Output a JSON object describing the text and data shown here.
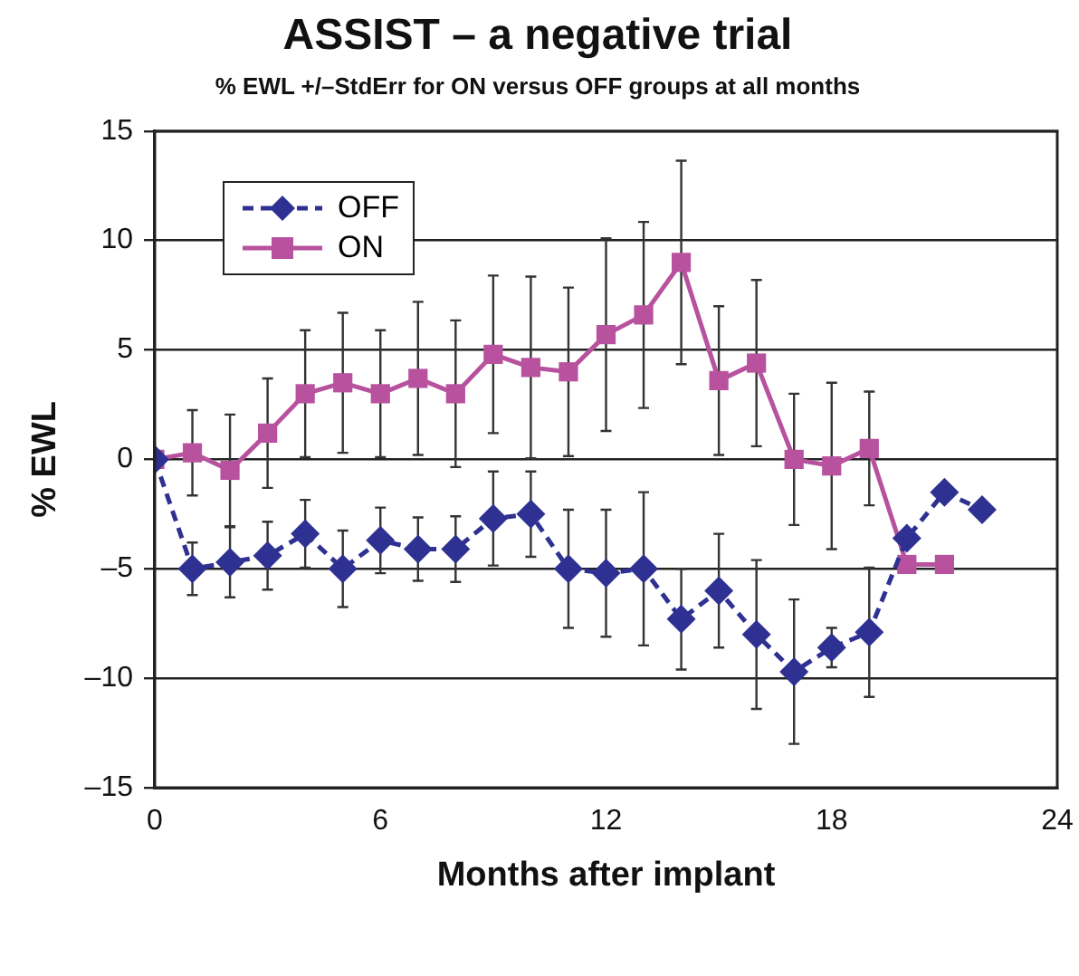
{
  "chart_data": {
    "type": "line",
    "title": "ASSIST – a negative trial",
    "subtitle": "% EWL +/–StdErr for ON versus OFF groups at all months",
    "xlabel": "Months after implant",
    "ylabel": "% EWL",
    "x": [
      0,
      1,
      2,
      3,
      4,
      5,
      6,
      7,
      8,
      9,
      10,
      11,
      12,
      13,
      14,
      15,
      16,
      17,
      18,
      19,
      20,
      21,
      22
    ],
    "series": [
      {
        "name": "OFF",
        "color": "#2e3192",
        "marker": "diamond",
        "line_style": "dashed",
        "values": [
          0,
          -5.0,
          -4.7,
          -4.4,
          -3.4,
          -5.0,
          -3.7,
          -4.1,
          -4.1,
          -2.7,
          -2.5,
          -5.0,
          -5.2,
          -5.0,
          -7.3,
          -6.0,
          -8.0,
          -9.7,
          -8.6,
          -7.9,
          -3.6,
          -1.5,
          -2.3
        ],
        "errors": [
          null,
          1.2,
          1.6,
          1.55,
          1.55,
          1.75,
          1.5,
          1.45,
          1.5,
          2.15,
          1.95,
          2.7,
          2.9,
          3.5,
          2.3,
          2.6,
          3.4,
          3.3,
          0.9,
          2.95,
          null,
          null,
          null
        ]
      },
      {
        "name": "ON",
        "color": "#b8529e",
        "marker": "square",
        "line_style": "solid",
        "values": [
          0,
          0.3,
          -0.5,
          1.2,
          3.0,
          3.5,
          3.0,
          3.7,
          3.0,
          4.8,
          4.2,
          4.0,
          5.7,
          6.6,
          9.0,
          3.6,
          4.4,
          0,
          -0.3,
          0.5,
          -4.8,
          -4.8,
          null
        ],
        "errors": [
          null,
          1.95,
          2.55,
          2.5,
          2.9,
          3.2,
          2.9,
          3.5,
          3.35,
          3.6,
          4.15,
          3.85,
          4.4,
          4.25,
          4.65,
          3.4,
          3.8,
          3.0,
          3.8,
          2.6,
          null,
          null,
          null
        ]
      }
    ],
    "xlim": [
      0,
      24
    ],
    "xticks": [
      0,
      6,
      12,
      18,
      24
    ],
    "ylim": [
      -15,
      15
    ],
    "yticks": [
      {
        "value": -15,
        "label": "–15"
      },
      {
        "value": -10,
        "label": "–10"
      },
      {
        "value": -5,
        "label": "–5"
      },
      0,
      5,
      10,
      15
    ],
    "grid": "y",
    "legend": "top left"
  }
}
